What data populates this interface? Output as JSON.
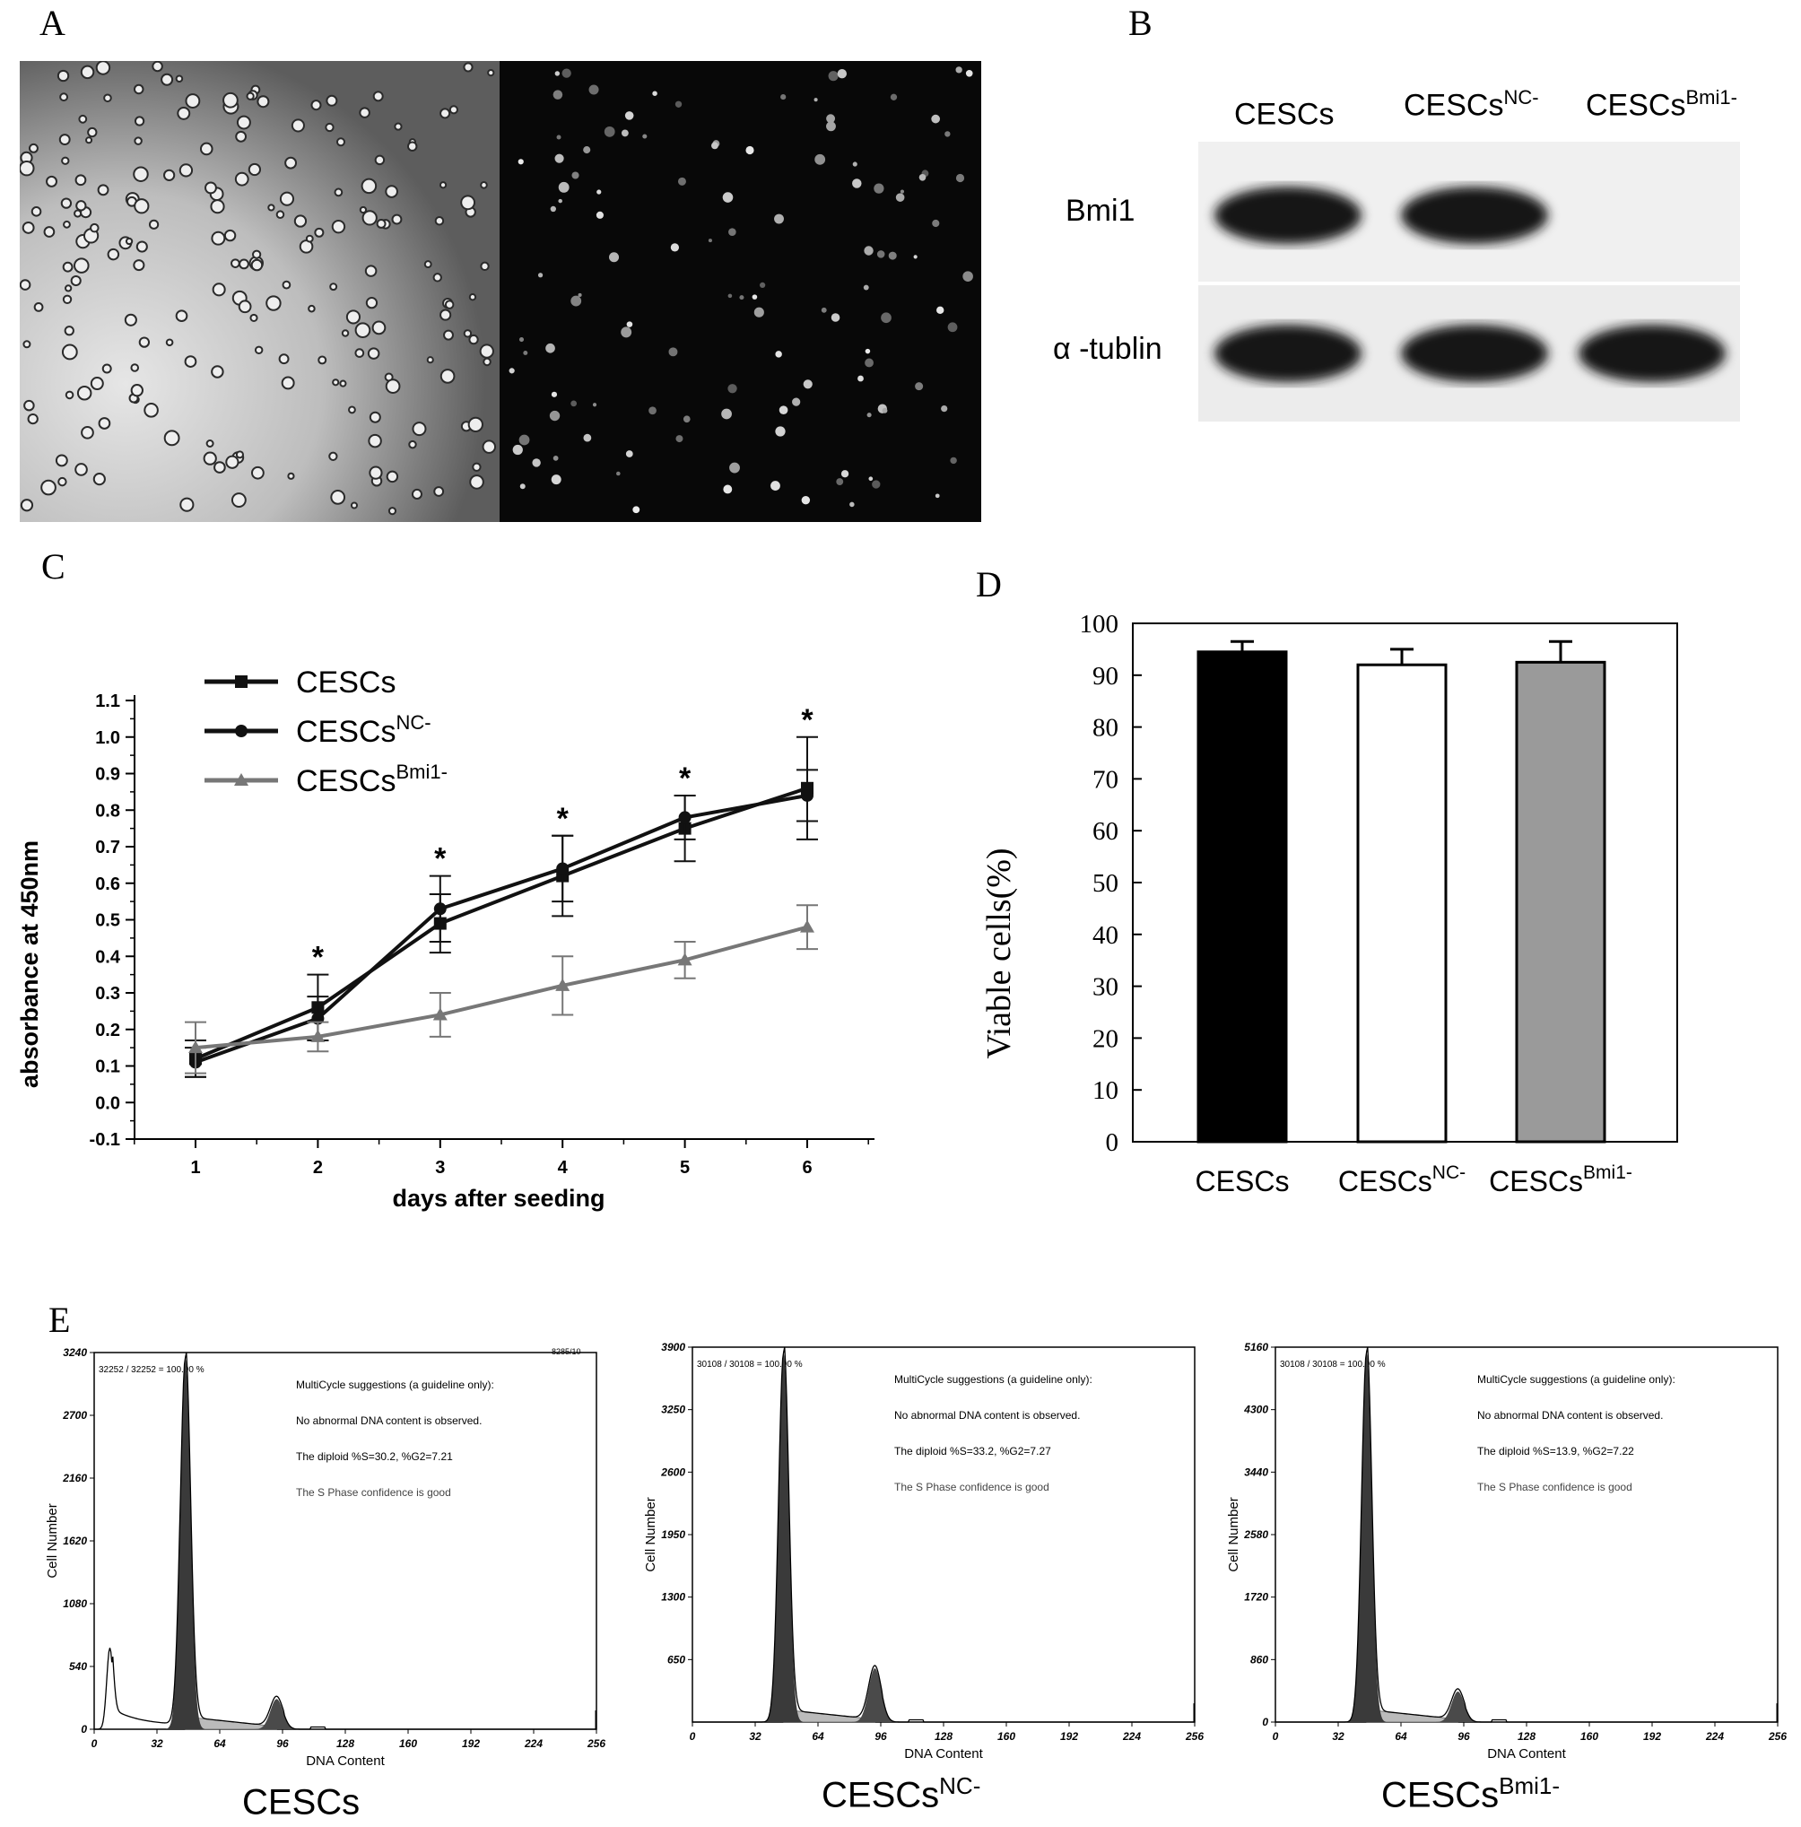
{
  "panels": {
    "A": "A",
    "B": "B",
    "C": "C",
    "D": "D",
    "E": "E"
  },
  "western_blot": {
    "lanes": [
      {
        "name": "CESCs",
        "sup": ""
      },
      {
        "name": "CESCs",
        "sup": "NC-"
      },
      {
        "name": "CESCs",
        "sup": "Bmi1-"
      }
    ],
    "rows": [
      {
        "label": "Bmi1",
        "intensity": [
          1,
          1,
          0
        ]
      },
      {
        "label": "α -tublin",
        "intensity": [
          1,
          1,
          1
        ]
      }
    ]
  },
  "chart_data": [
    {
      "panel": "C",
      "type": "line",
      "xlabel": "days after seeding",
      "ylabel": "absorbance at 450nm",
      "x": [
        1,
        2,
        3,
        4,
        5,
        6
      ],
      "xlim": [
        0.5,
        6.5
      ],
      "ylim": [
        -0.1,
        1.1
      ],
      "yticks": [
        "-0.1",
        "0.0",
        "0.1",
        "0.2",
        "0.3",
        "0.4",
        "0.5",
        "0.6",
        "0.7",
        "0.8",
        "0.9",
        "1.0",
        "1.1"
      ],
      "xticks": [
        "1",
        "2",
        "3",
        "4",
        "5",
        "6"
      ],
      "legend_position": "top-left",
      "series": [
        {
          "name": "CESCs",
          "sup": "",
          "marker": "square",
          "color": "#111111",
          "values": [
            0.12,
            0.26,
            0.49,
            0.62,
            0.75,
            0.86
          ],
          "err": [
            0.05,
            0.09,
            0.08,
            0.11,
            0.09,
            0.14
          ]
        },
        {
          "name": "CESCs",
          "sup": "NC-",
          "marker": "circle",
          "color": "#111111",
          "values": [
            0.11,
            0.23,
            0.53,
            0.64,
            0.78,
            0.84
          ],
          "err": [
            0.04,
            0.06,
            0.09,
            0.09,
            0.06,
            0.07
          ]
        },
        {
          "name": "CESCs",
          "sup": "Bmi1-",
          "marker": "triangle",
          "color": "#777777",
          "values": [
            0.15,
            0.18,
            0.24,
            0.32,
            0.39,
            0.48
          ],
          "err": [
            0.07,
            0.04,
            0.06,
            0.08,
            0.05,
            0.06
          ]
        }
      ],
      "annotations": [
        "*",
        "*",
        "*",
        "*",
        "*"
      ],
      "annotation_x": [
        2,
        3,
        4,
        5,
        6
      ]
    },
    {
      "panel": "D",
      "type": "bar",
      "ylabel": "Viable cells(%)",
      "ylim": [
        0,
        100
      ],
      "yticks": [
        "0",
        "10",
        "20",
        "30",
        "40",
        "50",
        "60",
        "70",
        "80",
        "90",
        "100"
      ],
      "categories": [
        {
          "name": "CESCs",
          "sup": ""
        },
        {
          "name": "CESCs",
          "sup": "NC-"
        },
        {
          "name": "CESCs",
          "sup": "Bmi1-"
        }
      ],
      "values": [
        94.5,
        92.0,
        92.5
      ],
      "err": [
        2.0,
        3.0,
        4.0
      ],
      "colors": [
        "#000000",
        "#ffffff",
        "#9a9a9a"
      ]
    },
    {
      "panel": "E",
      "type": "area",
      "histograms": [
        {
          "title": "CESCs",
          "title_sup": "",
          "xlabel": "DNA Content",
          "ylabel": "Cell Number",
          "xticks": [
            "0",
            "32",
            "64",
            "96",
            "128",
            "160",
            "192",
            "224",
            "256"
          ],
          "yticks": [
            "0",
            "540",
            "1080",
            "1620",
            "2160",
            "2700",
            "3240"
          ],
          "ymax": 3240,
          "gate": "32252 / 32252 = 100.00 %",
          "corner": "8285/10",
          "text_lines": [
            "MultiCycle suggestions (a guideline only):",
            "No abnormal DNA content is observed.",
            "The diploid %S=30.2, %G2=7.21",
            "The S Phase confidence is good"
          ],
          "g1_peak": 3200,
          "g2_peak": 260,
          "debris_peak": 700
        },
        {
          "title": "CESCs",
          "title_sup": "NC-",
          "xlabel": "DNA Content",
          "ylabel": "Cell Number",
          "xticks": [
            "0",
            "32",
            "64",
            "96",
            "128",
            "160",
            "192",
            "224",
            "256"
          ],
          "yticks": [
            "650",
            "1300",
            "1950",
            "2600",
            "3250",
            "3900"
          ],
          "ymax": 3900,
          "gate": "30108 / 30108 = 100.00 %",
          "corner": "",
          "text_lines": [
            "MultiCycle suggestions (a guideline only):",
            "No abnormal DNA content is observed.",
            "The diploid %S=33.2, %G2=7.27",
            "The S Phase confidence is good"
          ],
          "g1_peak": 3850,
          "g2_peak": 560,
          "debris_peak": 0
        },
        {
          "title": "CESCs",
          "title_sup": "Bmi1-",
          "xlabel": "DNA Content",
          "ylabel": "Cell Number",
          "xticks": [
            "0",
            "32",
            "64",
            "96",
            "128",
            "160",
            "192",
            "224",
            "256"
          ],
          "yticks": [
            "0",
            "860",
            "1720",
            "2580",
            "3440",
            "4300",
            "5160"
          ],
          "ymax": 5160,
          "gate": "30108 / 30108 = 100.00 %",
          "corner": "",
          "text_lines": [
            "MultiCycle suggestions (a guideline only):",
            "No abnormal DNA content is observed.",
            "The diploid %S=13.9, %G2=7.22",
            "The S Phase confidence is good"
          ],
          "g1_peak": 5100,
          "g2_peak": 420,
          "debris_peak": 0
        }
      ]
    }
  ]
}
